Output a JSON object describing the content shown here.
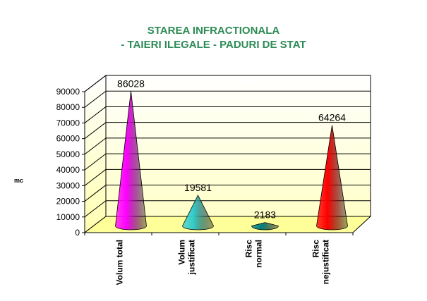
{
  "chart_data": {
    "type": "bar",
    "title": "STAREA INFRACTIONALA",
    "subtitle": "- TAIERI ILEGALE - PADURI DE STAT",
    "ylabel": "mc",
    "xlabel": "",
    "ylim": [
      0,
      90000
    ],
    "yticks": [
      0,
      10000,
      20000,
      30000,
      40000,
      50000,
      60000,
      70000,
      80000,
      90000
    ],
    "categories": [
      [
        "Volum total"
      ],
      [
        "Volum",
        "justificat"
      ],
      [
        "Risc",
        "normal"
      ],
      [
        "Risc",
        "nejustificat"
      ]
    ],
    "values": [
      86028,
      19581,
      2183,
      64264
    ],
    "data_labels": [
      "86028",
      "19581",
      "2183",
      "64264"
    ],
    "bar_shape": "cone",
    "colors": [
      "#ff00ff",
      "#33cccc",
      "#008080",
      "#ff0000"
    ],
    "grid": true,
    "legend": "none",
    "floor_color": "#ffff99"
  }
}
